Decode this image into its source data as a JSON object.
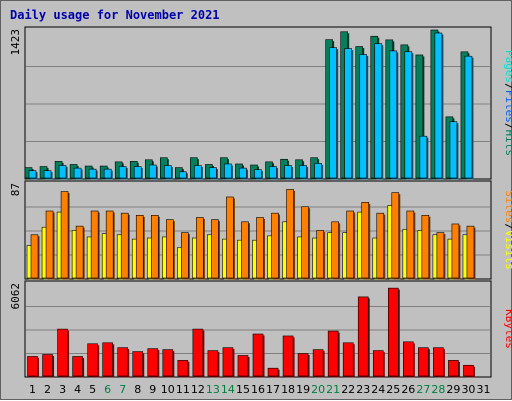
{
  "title": "Daily usage for November 2021",
  "colors": {
    "hits": "#00805c",
    "files": "#00c0ff",
    "pages": "#00e0d0",
    "visits": "#ffff00",
    "sites": "#ff8000",
    "kbytes": "#ff0000",
    "weekday_label": "#000000",
    "weekend_label": "#007f3f",
    "title": "#0000b0"
  },
  "chart_data": [
    {
      "type": "bar",
      "title": "Daily usage for November 2021",
      "categories": [
        "1",
        "2",
        "3",
        "4",
        "5",
        "6",
        "7",
        "8",
        "9",
        "10",
        "11",
        "12",
        "13",
        "14",
        "15",
        "16",
        "17",
        "18",
        "19",
        "20",
        "21",
        "22",
        "23",
        "24",
        "25",
        "26",
        "27",
        "28",
        "29",
        "30",
        "31"
      ],
      "weekend_days": [
        "6",
        "7",
        "13",
        "14",
        "20",
        "21",
        "27",
        "28"
      ],
      "ylabel_parts": [
        {
          "text": "Pages",
          "color": "#00e0d0"
        },
        {
          "text": "/",
          "color": "#000000"
        },
        {
          "text": "Files",
          "color": "#0060ff"
        },
        {
          "text": "/",
          "color": "#000000"
        },
        {
          "text": "Hits",
          "color": "#00805c"
        }
      ],
      "ymax_label": "1423",
      "ylim": [
        0,
        1423
      ],
      "grid": true,
      "series": [
        {
          "name": "Hits",
          "color": "#00805c",
          "values": [
            100,
            110,
            160,
            130,
            115,
            115,
            155,
            160,
            175,
            195,
            100,
            195,
            130,
            195,
            135,
            125,
            155,
            180,
            175,
            195,
            1330,
            1406,
            1264,
            1363,
            1328,
            1280,
            1183,
            1423,
            588,
            1213,
            0
          ]
        },
        {
          "name": "Files",
          "color": "#00c0ff",
          "values": [
            70,
            70,
            120,
            95,
            85,
            85,
            110,
            110,
            125,
            120,
            60,
            120,
            100,
            135,
            95,
            80,
            110,
            120,
            120,
            140,
            1253,
            1244,
            1187,
            1291,
            1222,
            1214,
            402,
            1394,
            541,
            1171,
            0
          ]
        },
        {
          "name": "Pages",
          "color": "#00e0d0",
          "values": [
            0,
            0,
            0,
            0,
            0,
            0,
            0,
            0,
            0,
            0,
            0,
            0,
            0,
            0,
            0,
            0,
            0,
            0,
            0,
            0,
            0,
            0,
            0,
            0,
            0,
            0,
            0,
            0,
            0,
            0,
            0
          ]
        }
      ]
    },
    {
      "type": "bar",
      "categories": [
        "1",
        "2",
        "3",
        "4",
        "5",
        "6",
        "7",
        "8",
        "9",
        "10",
        "11",
        "12",
        "13",
        "14",
        "15",
        "16",
        "17",
        "18",
        "19",
        "20",
        "21",
        "22",
        "23",
        "24",
        "25",
        "26",
        "27",
        "28",
        "29",
        "30",
        "31"
      ],
      "ylabel_parts": [
        {
          "text": "Sites",
          "color": "#ff8000"
        },
        {
          "text": "/",
          "color": "#000000"
        },
        {
          "text": "Visits",
          "color": "#ffff00"
        }
      ],
      "ymax_label": "87",
      "ylim": [
        0,
        87
      ],
      "grid": true,
      "series": [
        {
          "name": "Visits",
          "color": "#ffff00",
          "values": [
            30,
            47,
            61,
            44,
            38,
            41,
            40,
            36,
            37,
            38,
            28,
            37,
            40,
            36,
            35,
            35,
            39,
            52,
            38,
            37,
            42,
            42,
            61,
            37,
            67,
            45,
            44,
            40,
            36,
            40,
            0
          ]
        },
        {
          "name": "Sites",
          "color": "#ff8000",
          "values": [
            40,
            62,
            80,
            48,
            62,
            62,
            60,
            58,
            58,
            54,
            42,
            56,
            54,
            75,
            52,
            56,
            60,
            82,
            66,
            44,
            52,
            62,
            70,
            60,
            79,
            62,
            58,
            42,
            50,
            48,
            0
          ]
        }
      ]
    },
    {
      "type": "bar",
      "categories": [
        "1",
        "2",
        "3",
        "4",
        "5",
        "6",
        "7",
        "8",
        "9",
        "10",
        "11",
        "12",
        "13",
        "14",
        "15",
        "16",
        "17",
        "18",
        "19",
        "20",
        "21",
        "22",
        "23",
        "24",
        "25",
        "26",
        "27",
        "28",
        "29",
        "30",
        "31"
      ],
      "ylabel_parts": [
        {
          "text": "KBytes",
          "color": "#ff0000"
        }
      ],
      "ymax_label": "6062",
      "ylim": [
        0,
        6062
      ],
      "grid": true,
      "series": [
        {
          "name": "KBytes",
          "color": "#ff0000",
          "values": [
            1287,
            1416,
            3090,
            1287,
            2124,
            2188,
            1867,
            1609,
            1802,
            1738,
            1030,
            3090,
            1674,
            1867,
            1352,
            2767,
            515,
            2638,
            1481,
            1738,
            2960,
            2188,
            5212,
            1674,
            5791,
            2252,
            1867,
            1867,
            1030,
            708,
            0
          ]
        }
      ]
    }
  ]
}
